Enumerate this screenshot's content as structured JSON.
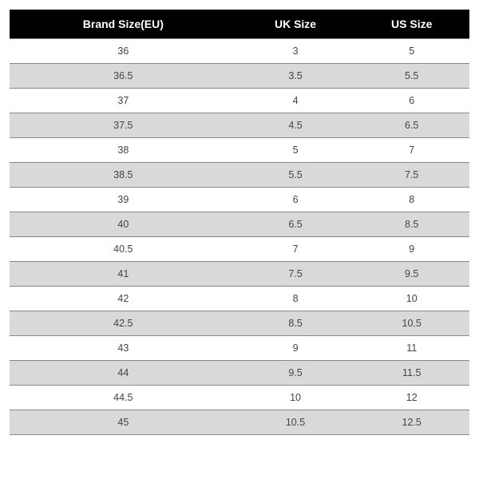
{
  "table": {
    "type": "table",
    "columns": [
      "Brand Size(EU)",
      "UK Size",
      "US Size"
    ],
    "rows": [
      [
        "36",
        "3",
        "5"
      ],
      [
        "36.5",
        "3.5",
        "5.5"
      ],
      [
        "37",
        "4",
        "6"
      ],
      [
        "37.5",
        "4.5",
        "6.5"
      ],
      [
        "38",
        "5",
        "7"
      ],
      [
        "38.5",
        "5.5",
        "7.5"
      ],
      [
        "39",
        "6",
        "8"
      ],
      [
        "40",
        "6.5",
        "8.5"
      ],
      [
        "40.5",
        "7",
        "9"
      ],
      [
        "41",
        "7.5",
        "9.5"
      ],
      [
        "42",
        "8",
        "10"
      ],
      [
        "42.5",
        "8.5",
        "10.5"
      ],
      [
        "43",
        "9",
        "11"
      ],
      [
        "44",
        "9.5",
        "11.5"
      ],
      [
        "44.5",
        "10",
        "12"
      ],
      [
        "45",
        "10.5",
        "12.5"
      ]
    ],
    "header_bg": "#000000",
    "header_text_color": "#ffffff",
    "header_font_weight": "bold",
    "header_fontsize": 14,
    "row_bg_even": "#ffffff",
    "row_bg_odd": "#d9d9d9",
    "border_color": "#888888",
    "cell_font_color": "#444444",
    "cell_fontsize": 12.5
  }
}
